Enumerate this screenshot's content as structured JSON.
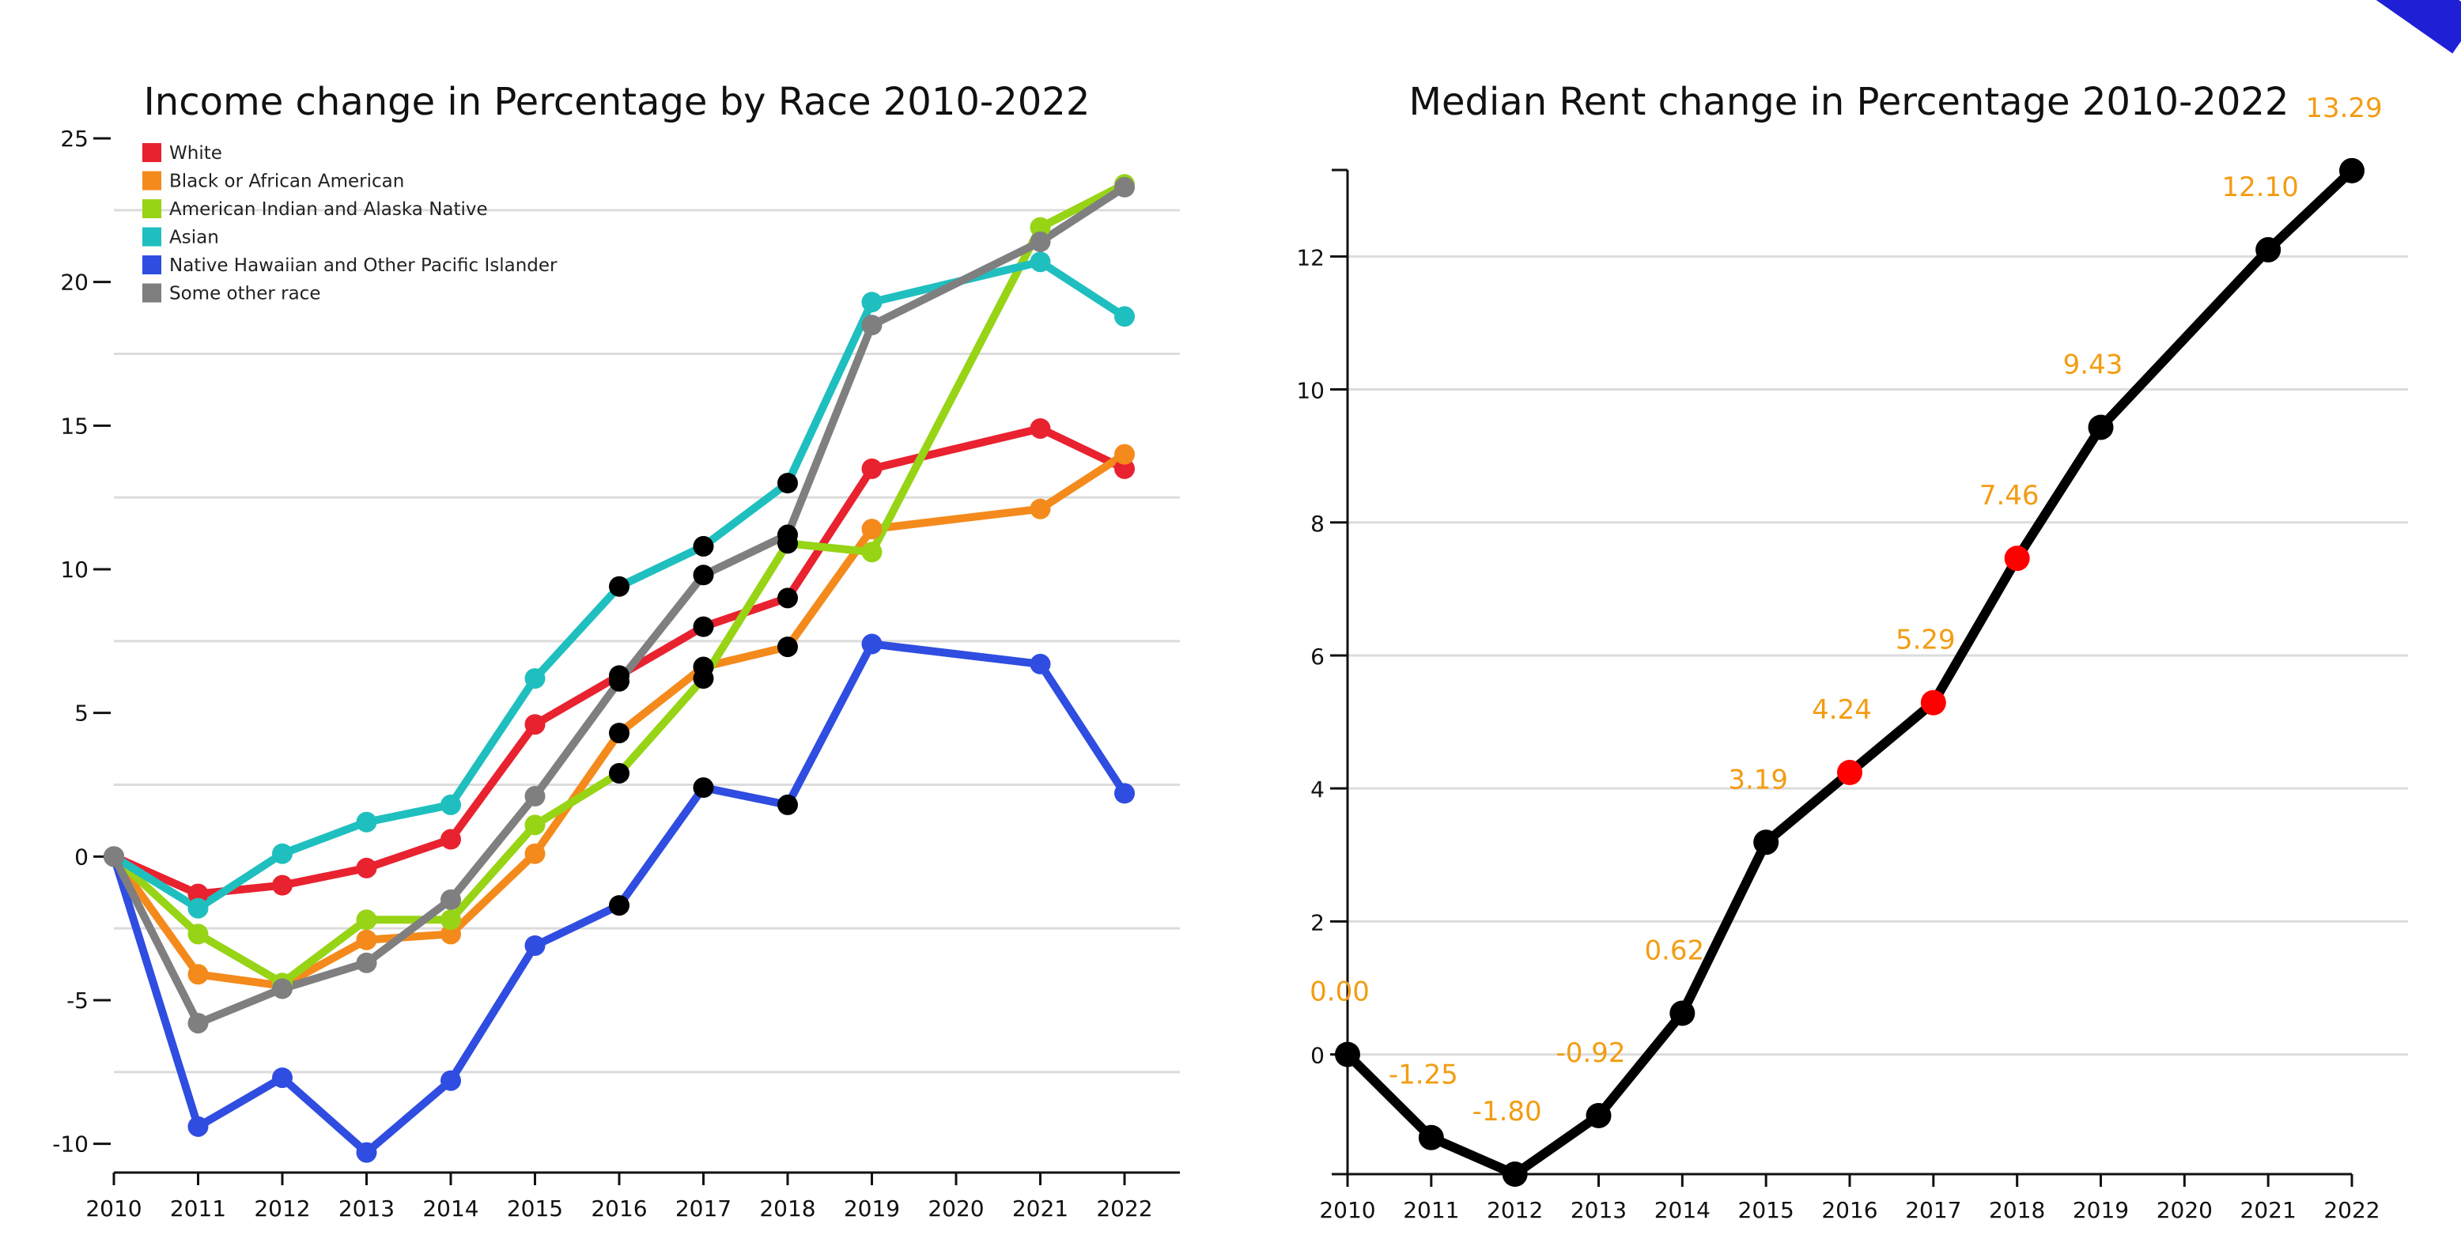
{
  "chart_data": [
    {
      "type": "line",
      "title": "Income change in Percentage by Race 2010-2022",
      "x": [
        2010,
        2011,
        2012,
        2013,
        2014,
        2015,
        2016,
        2017,
        2018,
        2019,
        2020,
        2021,
        2022
      ],
      "x_tick_labels": [
        "2010",
        "2011",
        "2012",
        "2013",
        "2014",
        "2015",
        "2016",
        "2017",
        "2018",
        "2019",
        "2020",
        "2021",
        "2022"
      ],
      "ylim": [
        -11,
        25
      ],
      "y_ticks": [
        -10,
        -5,
        0,
        5,
        10,
        15,
        20,
        25
      ],
      "y_tick_labels": [
        "-10",
        "-5",
        "0",
        "5",
        "10",
        "15",
        "20",
        "25"
      ],
      "grid": true,
      "legend_position": "top-left",
      "highlight_color": "#000000",
      "series": [
        {
          "name": "White",
          "color": "#e8222f",
          "points": [
            [
              2010,
              0
            ],
            [
              2011,
              -1.3
            ],
            [
              2012,
              -1
            ],
            [
              2013,
              -0.4
            ],
            [
              2014,
              0.6
            ],
            [
              2015,
              4.6
            ],
            [
              2016,
              6.3
            ],
            [
              2017,
              8
            ],
            [
              2018,
              9
            ],
            [
              2019,
              13.5
            ],
            [
              2021,
              14.9
            ],
            [
              2022,
              13.5
            ]
          ],
          "highlight": [
            2016,
            2017,
            2018
          ]
        },
        {
          "name": "Black or African American",
          "color": "#f48a1c",
          "points": [
            [
              2010,
              0
            ],
            [
              2011,
              -4.1
            ],
            [
              2012,
              -4.5
            ],
            [
              2013,
              -2.9
            ],
            [
              2014,
              -2.7
            ],
            [
              2015,
              0.1
            ],
            [
              2016,
              4.3
            ],
            [
              2017,
              6.6
            ],
            [
              2018,
              7.3
            ],
            [
              2019,
              11.4
            ],
            [
              2021,
              12.1
            ],
            [
              2022,
              14
            ]
          ],
          "highlight": [
            2016,
            2017,
            2018
          ]
        },
        {
          "name": "American Indian and Alaska Native",
          "color": "#97d416",
          "points": [
            [
              2010,
              0
            ],
            [
              2011,
              -2.7
            ],
            [
              2012,
              -4.4
            ],
            [
              2013,
              -2.2
            ],
            [
              2014,
              -2.2
            ],
            [
              2015,
              1.1
            ],
            [
              2016,
              2.9
            ],
            [
              2017,
              6.2
            ],
            [
              2018,
              10.9
            ],
            [
              2019,
              10.6
            ],
            [
              2021,
              21.9
            ],
            [
              2022,
              23.4
            ]
          ],
          "highlight": [
            2016,
            2017,
            2018
          ]
        },
        {
          "name": "Asian",
          "color": "#1fbfbf",
          "points": [
            [
              2010,
              0
            ],
            [
              2011,
              -1.8
            ],
            [
              2012,
              0.1
            ],
            [
              2013,
              1.2
            ],
            [
              2014,
              1.8
            ],
            [
              2015,
              6.2
            ],
            [
              2016,
              9.4
            ],
            [
              2017,
              10.8
            ],
            [
              2018,
              13
            ],
            [
              2019,
              19.3
            ],
            [
              2021,
              20.7
            ],
            [
              2022,
              18.8
            ]
          ],
          "highlight": [
            2016,
            2017,
            2018
          ]
        },
        {
          "name": "Native Hawaiian and Other Pacific Islander",
          "color": "#2f4de0",
          "points": [
            [
              2010,
              0
            ],
            [
              2011,
              -9.4
            ],
            [
              2012,
              -7.7
            ],
            [
              2013,
              -10.3
            ],
            [
              2014,
              -7.8
            ],
            [
              2015,
              -3.1
            ],
            [
              2016,
              -1.7
            ],
            [
              2017,
              2.4
            ],
            [
              2018,
              1.8
            ],
            [
              2019,
              7.4
            ],
            [
              2021,
              6.7
            ],
            [
              2022,
              2.2
            ]
          ],
          "highlight": [
            2016,
            2017,
            2018
          ]
        },
        {
          "name": "Some other race",
          "color": "#7f7f7f",
          "points": [
            [
              2010,
              0
            ],
            [
              2011,
              -5.8
            ],
            [
              2012,
              -4.6
            ],
            [
              2013,
              -3.7
            ],
            [
              2014,
              -1.5
            ],
            [
              2015,
              2.1
            ],
            [
              2016,
              6.1
            ],
            [
              2017,
              9.8
            ],
            [
              2018,
              11.2
            ],
            [
              2019,
              18.5
            ],
            [
              2021,
              21.4
            ],
            [
              2022,
              23.3
            ]
          ],
          "highlight": [
            2016,
            2017,
            2018
          ]
        }
      ]
    },
    {
      "type": "line",
      "title": "Median Rent change in Percentage 2010-2022",
      "x": [
        2010,
        2011,
        2012,
        2013,
        2014,
        2015,
        2016,
        2017,
        2018,
        2019,
        2020,
        2021,
        2022
      ],
      "x_tick_labels": [
        "2010",
        "2011",
        "2012",
        "2013",
        "2014",
        "2015",
        "2016",
        "2017",
        "2018",
        "2019",
        "2020",
        "2021",
        "2022"
      ],
      "ylim": [
        -1.8,
        13.3
      ],
      "y_ticks": [
        0,
        2,
        4,
        6,
        8,
        10,
        12
      ],
      "y_tick_labels": [
        "0",
        "2",
        "4",
        "6",
        "8",
        "10",
        "12"
      ],
      "grid": true,
      "line_color": "#000000",
      "marker_color": "#000000",
      "highlight_marker_color": "#ff0000",
      "label_color": "#f39c12",
      "series": [
        {
          "points": [
            [
              2010,
              0
            ],
            [
              2011,
              -1.25
            ],
            [
              2012,
              -1.8
            ],
            [
              2013,
              -0.92
            ],
            [
              2014,
              0.62
            ],
            [
              2015,
              3.19
            ],
            [
              2016,
              4.24
            ],
            [
              2017,
              5.29
            ],
            [
              2018,
              7.46
            ],
            [
              2019,
              9.43
            ],
            [
              2021,
              12.1
            ],
            [
              2022,
              13.29
            ]
          ],
          "data_labels": [
            "0.00",
            "-1.25",
            "-1.80",
            "-0.92",
            "0.62",
            "3.19",
            "4.24",
            "5.29",
            "7.46",
            "9.43",
            "12.10",
            "13.29"
          ],
          "highlight": [
            2016,
            2017,
            2018
          ]
        }
      ]
    }
  ]
}
